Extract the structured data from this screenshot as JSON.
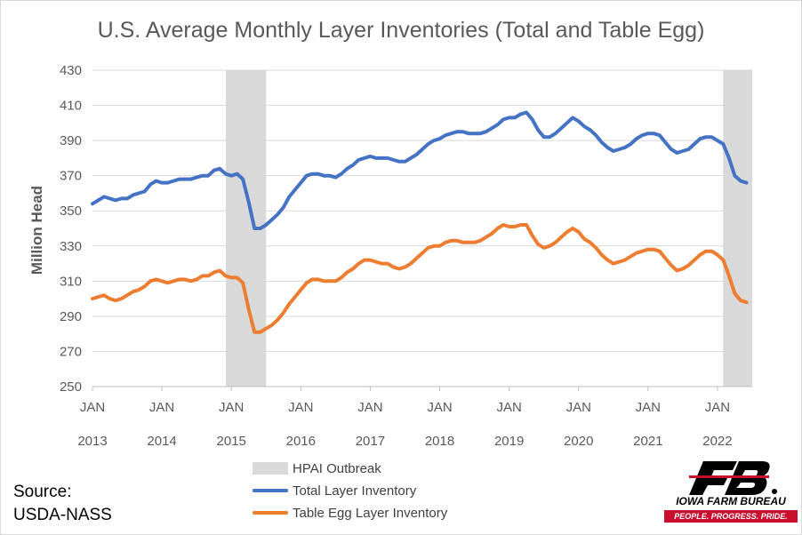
{
  "chart_data": {
    "type": "line",
    "title": "U.S. Average Monthly Layer Inventories (Total and Table Egg)",
    "ylabel": "Million Head",
    "ylim": [
      250,
      430
    ],
    "yticks": [
      250,
      270,
      290,
      310,
      330,
      350,
      370,
      390,
      410,
      430
    ],
    "grid": "horizontal",
    "xlim": [
      2013.0,
      2022.5
    ],
    "x_tick_positions": [
      2013,
      2014,
      2015,
      2016,
      2017,
      2018,
      2019,
      2020,
      2021,
      2022
    ],
    "x_tick_months": [
      "JAN",
      "JAN",
      "JAN",
      "JAN",
      "JAN",
      "JAN",
      "JAN",
      "JAN",
      "JAN",
      "JAN"
    ],
    "x_tick_years": [
      "2013",
      "2014",
      "2015",
      "2016",
      "2017",
      "2018",
      "2019",
      "2020",
      "2021",
      "2022"
    ],
    "x_start": 2013.0,
    "x_step": 0.08333,
    "shaded_regions": [
      {
        "name": "HPAI Outbreak",
        "from": 2014.92,
        "to": 2015.5,
        "color": "#d9d9d9"
      },
      {
        "name": "HPAI Outbreak",
        "from": 2022.08,
        "to": 2022.5,
        "color": "#d9d9d9"
      }
    ],
    "legend_position": "bottom",
    "series": [
      {
        "name": "Total Layer Inventory",
        "color": "#4472c4",
        "values": [
          354,
          356,
          358,
          357,
          356,
          357,
          357,
          359,
          360,
          361,
          365,
          367,
          366,
          366,
          367,
          368,
          368,
          368,
          369,
          370,
          370,
          373,
          374,
          371,
          370,
          371,
          368,
          355,
          340,
          340,
          342,
          345,
          348,
          352,
          358,
          362,
          366,
          370,
          371,
          371,
          370,
          370,
          369,
          371,
          374,
          376,
          379,
          380,
          381,
          380,
          380,
          380,
          379,
          378,
          378,
          380,
          382,
          385,
          388,
          390,
          391,
          393,
          394,
          395,
          395,
          394,
          394,
          394,
          395,
          397,
          399,
          402,
          403,
          403,
          405,
          406,
          402,
          396,
          392,
          392,
          394,
          397,
          400,
          403,
          401,
          398,
          396,
          393,
          389,
          386,
          384,
          385,
          386,
          388,
          391,
          393,
          394,
          394,
          393,
          389,
          385,
          383,
          384,
          385,
          388,
          391,
          392,
          392,
          390,
          388,
          380,
          370,
          367,
          366
        ]
      },
      {
        "name": "Table Egg Layer Inventory",
        "color": "#ed7d31",
        "values": [
          300,
          301,
          302,
          300,
          299,
          300,
          302,
          304,
          305,
          307,
          310,
          311,
          310,
          309,
          310,
          311,
          311,
          310,
          311,
          313,
          313,
          315,
          316,
          313,
          312,
          312,
          309,
          294,
          281,
          281,
          283,
          285,
          288,
          292,
          297,
          301,
          305,
          309,
          311,
          311,
          310,
          310,
          310,
          312,
          315,
          317,
          320,
          322,
          322,
          321,
          320,
          320,
          318,
          317,
          318,
          320,
          323,
          326,
          329,
          330,
          330,
          332,
          333,
          333,
          332,
          332,
          332,
          333,
          335,
          337,
          340,
          342,
          341,
          341,
          342,
          342,
          336,
          331,
          329,
          330,
          332,
          335,
          338,
          340,
          338,
          334,
          332,
          329,
          325,
          322,
          320,
          321,
          322,
          324,
          326,
          327,
          328,
          328,
          327,
          323,
          319,
          316,
          317,
          319,
          322,
          325,
          327,
          327,
          325,
          322,
          313,
          303,
          299,
          298
        ]
      }
    ]
  },
  "source": {
    "line1": "Source:",
    "line2": "USDA-NASS"
  },
  "logo": {
    "name": "IOWA FARM BUREAU",
    "tagline": "PEOPLE. PROGRESS. PRIDE.",
    "mark": "FB"
  },
  "colors": {
    "total": "#4472c4",
    "table_egg": "#ed7d31",
    "shading": "#d9d9d9",
    "brand_red": "#c8102e"
  }
}
